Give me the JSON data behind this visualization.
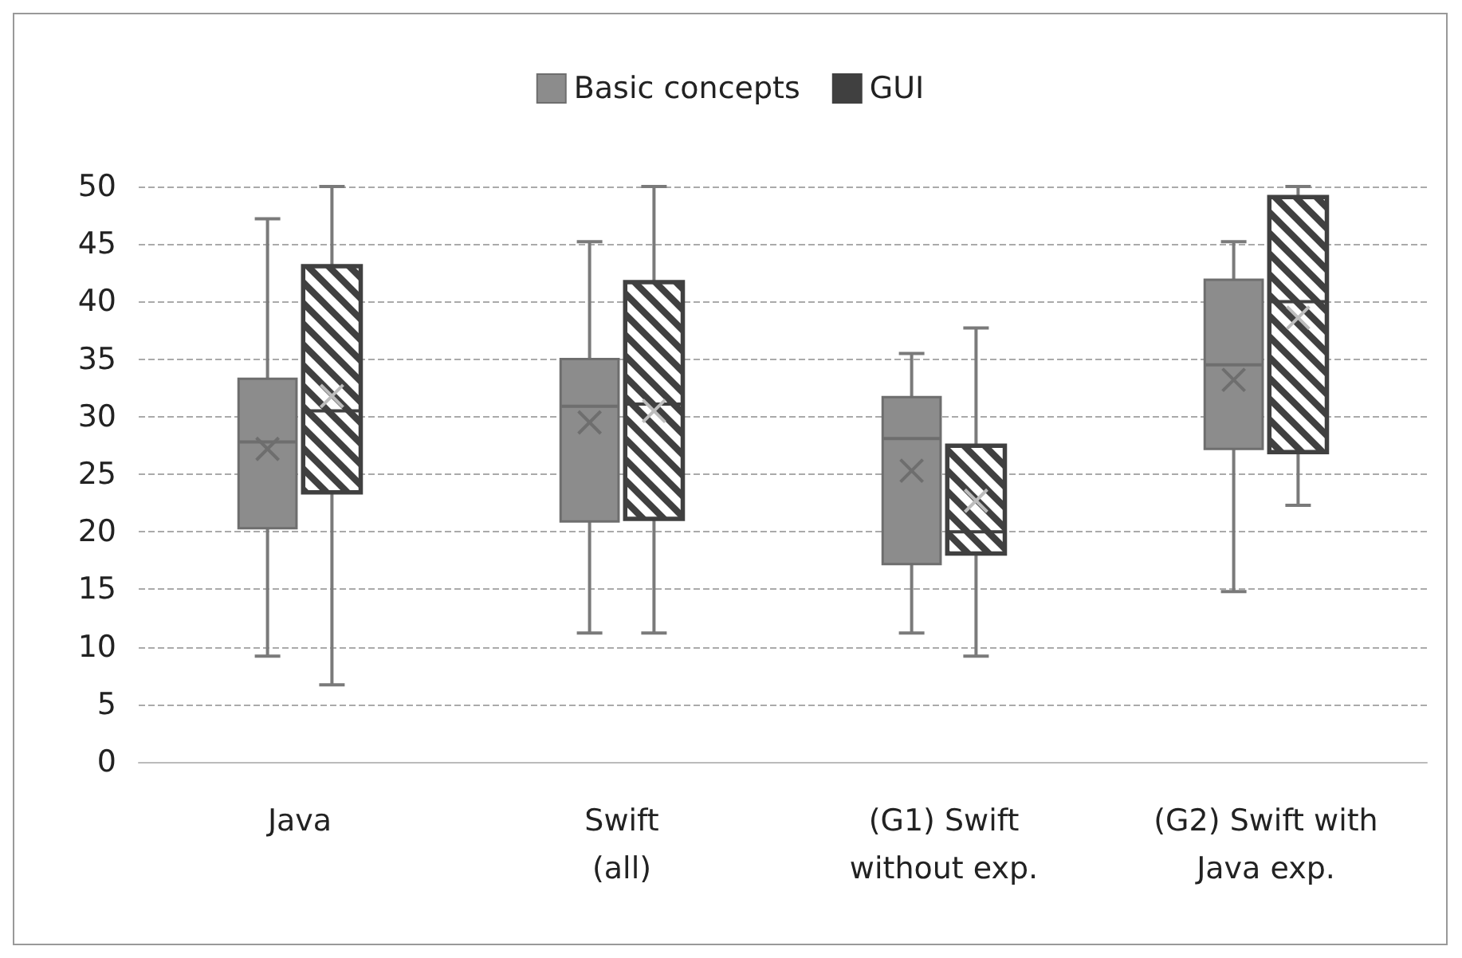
{
  "chart_data": {
    "type": "box",
    "categories": [
      "Java",
      "Swift\n(all)",
      "(G1) Swift\nwithout exp.",
      "(G2) Swift with\nJava exp."
    ],
    "series": [
      {
        "name": "Basic concepts",
        "color": "#8c8c8c",
        "boxes": [
          {
            "low": 9.2,
            "q1": 20.3,
            "median": 27.8,
            "q3": 33.3,
            "high": 47.2,
            "mean": 27.2
          },
          {
            "low": 11.2,
            "q1": 20.9,
            "median": 30.9,
            "q3": 35.0,
            "high": 45.2,
            "mean": 29.5
          },
          {
            "low": 11.2,
            "q1": 17.2,
            "median": 28.1,
            "q3": 31.7,
            "high": 35.5,
            "mean": 25.3
          },
          {
            "low": 14.8,
            "q1": 27.2,
            "median": 34.5,
            "q3": 41.9,
            "high": 45.2,
            "mean": 33.2
          }
        ]
      },
      {
        "name": "GUI",
        "color": "#404040",
        "boxes": [
          {
            "low": 6.7,
            "q1": 23.4,
            "median": 30.5,
            "q3": 43.1,
            "high": 50,
            "mean": 31.8
          },
          {
            "low": 11.2,
            "q1": 21.1,
            "median": 31.1,
            "q3": 41.7,
            "high": 50,
            "mean": 30.5
          },
          {
            "low": 9.2,
            "q1": 18.1,
            "median": 20.0,
            "q3": 27.5,
            "high": 37.7,
            "mean": 22.7
          },
          {
            "low": 22.3,
            "q1": 26.9,
            "median": 40.0,
            "q3": 49.1,
            "high": 50,
            "mean": 38.6
          }
        ]
      }
    ],
    "ylim": [
      0,
      50
    ],
    "yticks": [
      0,
      5,
      10,
      15,
      20,
      25,
      30,
      35,
      40,
      45,
      50
    ],
    "grid": "y",
    "legend": "top"
  }
}
